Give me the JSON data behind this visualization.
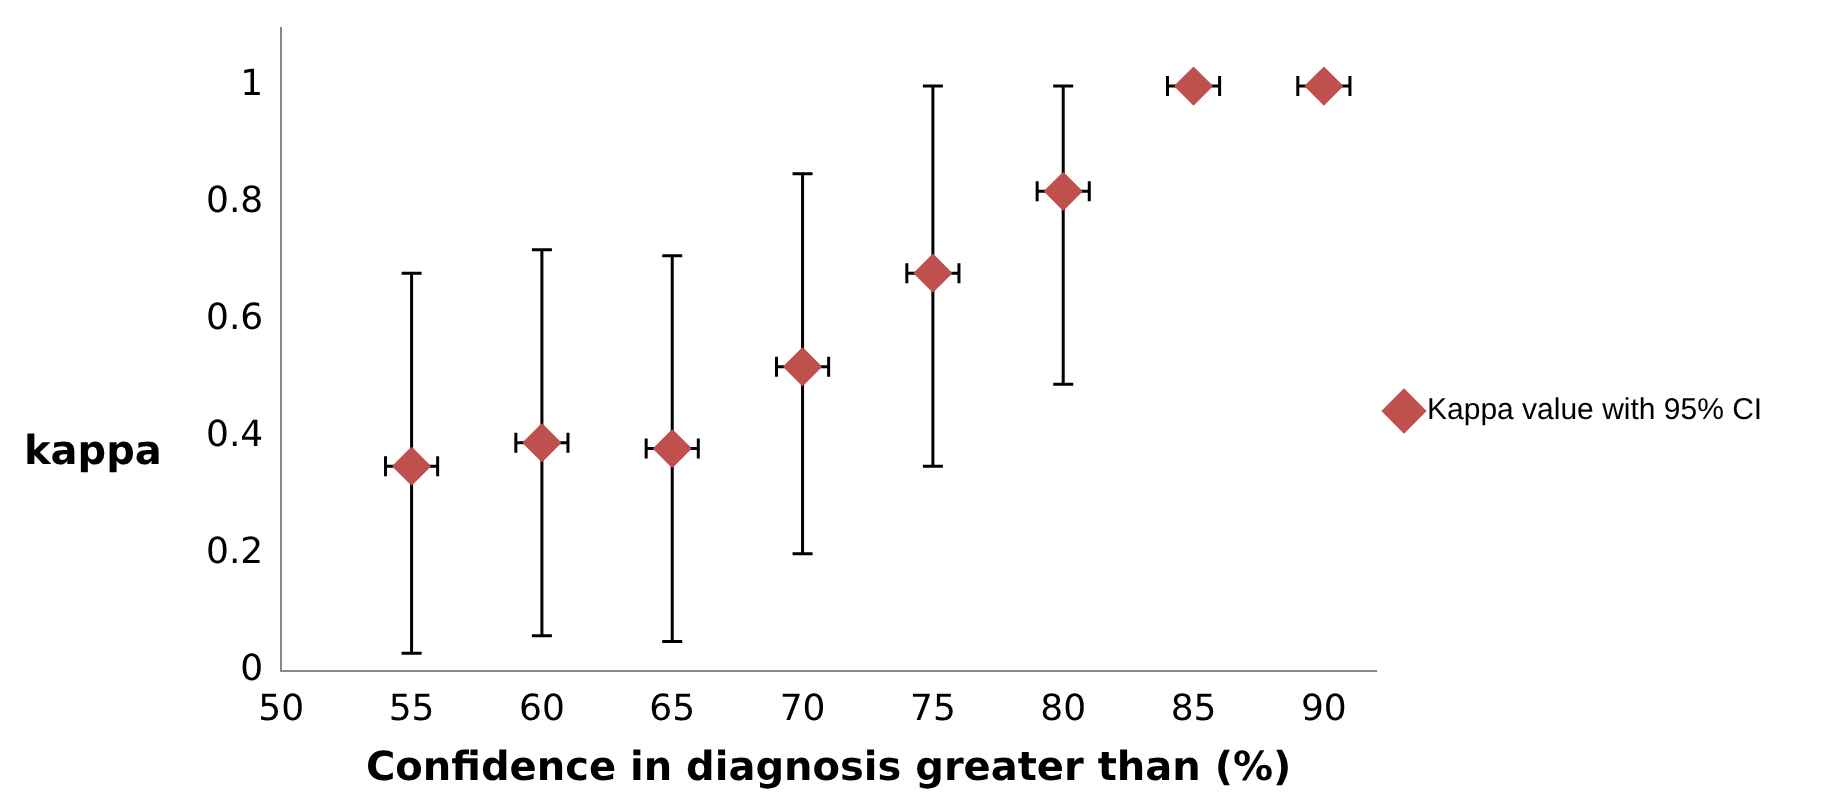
{
  "chart_data": {
    "type": "scatter",
    "xlabel": "Confidence in diagnosis greater than (%)",
    "ylabel": "kappa",
    "series": [
      {
        "name": "Kappa value with 95% CI",
        "color": "#c0504d",
        "x": [
          55,
          60,
          65,
          70,
          75,
          80,
          85,
          90
        ],
        "values": [
          0.35,
          0.39,
          0.38,
          0.52,
          0.68,
          0.82,
          1,
          1
        ],
        "errors": [
          [
            0.03,
            0.68
          ],
          [
            0.06,
            0.72
          ],
          [
            0.05,
            0.71
          ],
          [
            0.2,
            0.85
          ],
          [
            0.35,
            1
          ],
          [
            0.49,
            1
          ],
          null,
          null
        ],
        "xerrors": [
          1,
          1,
          1,
          1,
          1,
          1,
          1,
          1
        ]
      }
    ],
    "xlim": [
      50,
      92
    ],
    "xticks": [
      50,
      55,
      60,
      65,
      70,
      75,
      80,
      85,
      90
    ],
    "ylim": [
      0,
      1.1
    ],
    "yticks": [
      0,
      0.2,
      0.4,
      0.6,
      0.8,
      1
    ],
    "grid": false,
    "legend": "right",
    "marker": "diamond"
  }
}
